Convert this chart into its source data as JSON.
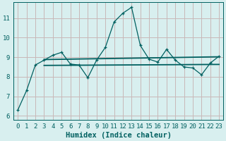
{
  "x": [
    0,
    1,
    2,
    3,
    4,
    5,
    6,
    7,
    8,
    9,
    10,
    11,
    12,
    13,
    14,
    15,
    16,
    17,
    18,
    19,
    20,
    21,
    22,
    23
  ],
  "y": [
    6.3,
    7.3,
    8.6,
    8.85,
    9.1,
    9.25,
    8.65,
    8.6,
    7.95,
    8.85,
    9.5,
    10.8,
    11.25,
    11.55,
    9.6,
    8.9,
    8.75,
    9.4,
    8.85,
    8.5,
    8.45,
    8.1,
    8.7,
    9.05
  ],
  "line_color": "#006060",
  "bg_color": "#d8efef",
  "grid_color": "#c8b8b8",
  "xlabel": "Humidex (Indice chaleur)",
  "xlim": [
    -0.5,
    23.5
  ],
  "ylim": [
    5.8,
    11.8
  ],
  "yticks": [
    6,
    7,
    8,
    9,
    10,
    11
  ],
  "xticks": [
    0,
    1,
    2,
    3,
    4,
    5,
    6,
    7,
    8,
    9,
    10,
    11,
    12,
    13,
    14,
    15,
    16,
    17,
    18,
    19,
    20,
    21,
    22,
    23
  ],
  "font_color": "#006060",
  "tick_fontsize": 6.5,
  "xlabel_fontsize": 7.5,
  "reg_line1_x": [
    3,
    23
  ],
  "reg_line1_y": [
    8.58,
    8.63
  ],
  "reg_line2_x": [
    3,
    23
  ],
  "reg_line2_y": [
    8.88,
    9.02
  ]
}
